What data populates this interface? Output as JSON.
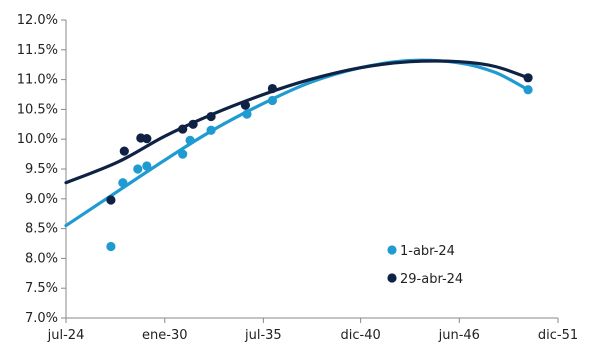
{
  "chart_data": {
    "type": "scatter",
    "x_axis": {
      "type": "date",
      "min": "2024-07-01",
      "max": "2051-12-01",
      "ticks": [
        {
          "date": "2024-07-01",
          "label": "jul-24"
        },
        {
          "date": "2030-01-01",
          "label": "ene-30"
        },
        {
          "date": "2035-07-01",
          "label": "jul-35"
        },
        {
          "date": "2040-12-01",
          "label": "dic-40"
        },
        {
          "date": "2046-06-01",
          "label": "jun-46"
        },
        {
          "date": "2051-12-01",
          "label": "dic-51"
        }
      ]
    },
    "y_axis": {
      "min": 7.0,
      "max": 12.0,
      "ticks": [
        {
          "value": 7.0,
          "label": "7.0%"
        },
        {
          "value": 7.5,
          "label": "7.5%"
        },
        {
          "value": 8.0,
          "label": "8.0%"
        },
        {
          "value": 8.5,
          "label": "8.5%"
        },
        {
          "value": 9.0,
          "label": "9.0%"
        },
        {
          "value": 9.5,
          "label": "9.5%"
        },
        {
          "value": 10.0,
          "label": "10.0%"
        },
        {
          "value": 10.5,
          "label": "10.5%"
        },
        {
          "value": 11.0,
          "label": "11.0%"
        },
        {
          "value": 11.5,
          "label": "11.5%"
        },
        {
          "value": 12.0,
          "label": "12.0%"
        }
      ]
    },
    "grid": false,
    "legend_position": "bottom-right",
    "series": [
      {
        "name": "1-abr-24",
        "color": "#1f9bd1",
        "points": [
          {
            "x": "2027-01-01",
            "y": 8.2
          },
          {
            "x": "2027-09-01",
            "y": 9.27
          },
          {
            "x": "2028-07-01",
            "y": 9.5
          },
          {
            "x": "2029-01-01",
            "y": 9.55
          },
          {
            "x": "2031-01-01",
            "y": 9.75
          },
          {
            "x": "2031-06-01",
            "y": 9.98
          },
          {
            "x": "2032-08-01",
            "y": 10.15
          },
          {
            "x": "2034-08-01",
            "y": 10.42
          },
          {
            "x": "2036-01-01",
            "y": 10.65
          },
          {
            "x": "2050-04-01",
            "y": 10.83
          }
        ],
        "trend": [
          {
            "x": "2024-07-01",
            "y": 8.55
          },
          {
            "x": "2027-01-01",
            "y": 9.05
          },
          {
            "x": "2030-01-01",
            "y": 9.65
          },
          {
            "x": "2032-09-01",
            "y": 10.15
          },
          {
            "x": "2035-07-01",
            "y": 10.6
          },
          {
            "x": "2038-02-01",
            "y": 10.95
          },
          {
            "x": "2040-12-01",
            "y": 11.2
          },
          {
            "x": "2043-09-01",
            "y": 11.32
          },
          {
            "x": "2046-06-01",
            "y": 11.28
          },
          {
            "x": "2048-06-01",
            "y": 11.12
          },
          {
            "x": "2050-04-01",
            "y": 10.83
          }
        ]
      },
      {
        "name": "29-abr-24",
        "color": "#0f2244",
        "points": [
          {
            "x": "2027-01-01",
            "y": 8.98
          },
          {
            "x": "2027-10-01",
            "y": 9.8
          },
          {
            "x": "2028-09-01",
            "y": 10.02
          },
          {
            "x": "2029-01-01",
            "y": 10.01
          },
          {
            "x": "2031-01-01",
            "y": 10.17
          },
          {
            "x": "2031-08-01",
            "y": 10.25
          },
          {
            "x": "2032-08-01",
            "y": 10.38
          },
          {
            "x": "2034-07-01",
            "y": 10.57
          },
          {
            "x": "2036-01-01",
            "y": 10.85
          },
          {
            "x": "2050-04-01",
            "y": 11.03
          }
        ],
        "trend": [
          {
            "x": "2024-07-01",
            "y": 9.27
          },
          {
            "x": "2027-06-01",
            "y": 9.62
          },
          {
            "x": "2030-01-01",
            "y": 10.05
          },
          {
            "x": "2032-09-01",
            "y": 10.42
          },
          {
            "x": "2035-07-01",
            "y": 10.75
          },
          {
            "x": "2038-02-01",
            "y": 11.0
          },
          {
            "x": "2040-12-01",
            "y": 11.2
          },
          {
            "x": "2043-09-01",
            "y": 11.3
          },
          {
            "x": "2046-06-01",
            "y": 11.3
          },
          {
            "x": "2048-06-01",
            "y": 11.22
          },
          {
            "x": "2050-04-01",
            "y": 11.03
          }
        ]
      }
    ]
  }
}
